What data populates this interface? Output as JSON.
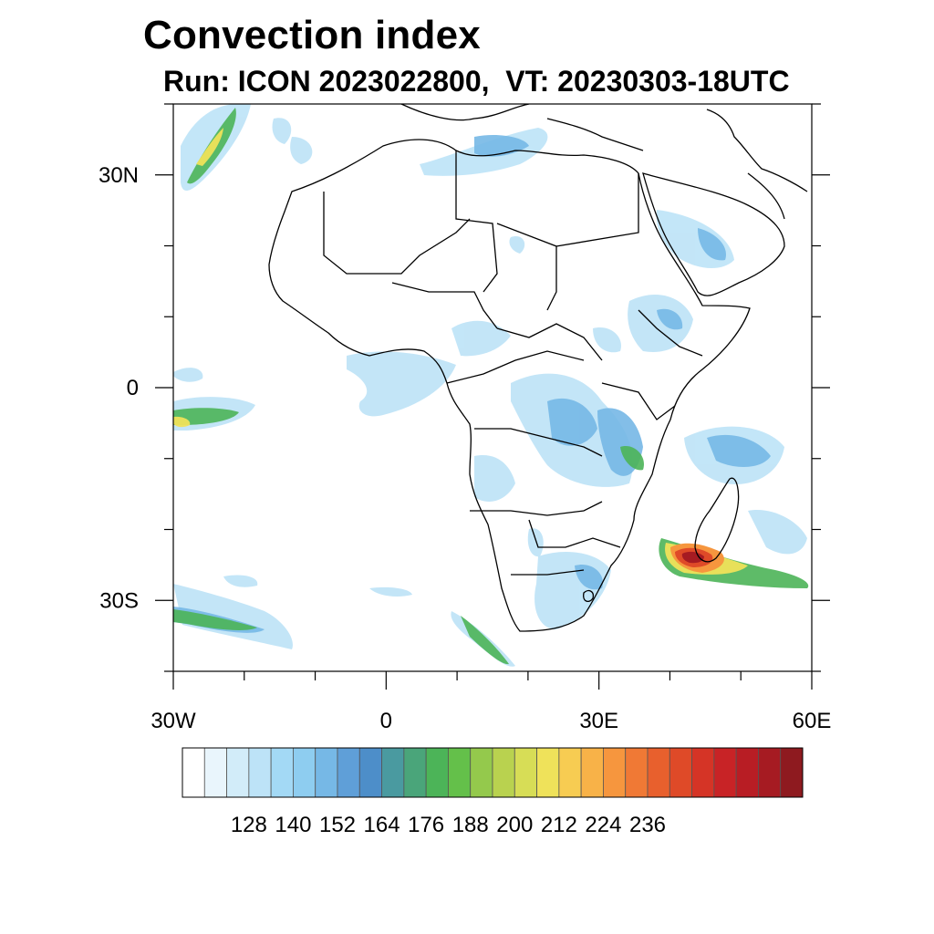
{
  "title": "Convection index",
  "subtitle": "Run: ICON 2023022800,  VT: 20230303-18UTC",
  "map": {
    "lon_range": [
      -30,
      60
    ],
    "lat_range": [
      -40,
      40
    ],
    "lat_labels": [
      {
        "value": 30,
        "text": "30N"
      },
      {
        "value": 0,
        "text": "0"
      },
      {
        "value": -30,
        "text": "30S"
      }
    ],
    "lon_labels": [
      {
        "value": -30,
        "text": "30W"
      },
      {
        "value": 0,
        "text": "0"
      },
      {
        "value": 30,
        "text": "30E"
      },
      {
        "value": 60,
        "text": "60E"
      }
    ],
    "lat_ticks": [
      40,
      30,
      20,
      10,
      0,
      -10,
      -20,
      -30,
      -40
    ],
    "lon_ticks": [
      -30,
      -20,
      -10,
      0,
      10,
      20,
      30,
      40,
      50,
      60
    ]
  },
  "colorbar": {
    "colors": [
      "#ffffff",
      "#e9f5fc",
      "#d2ecf9",
      "#bde3f7",
      "#a3d9f5",
      "#8ecdf0",
      "#76b8e6",
      "#5f9fd8",
      "#4d8ec9",
      "#4a9aa0",
      "#4aa57a",
      "#4cb458",
      "#64c04a",
      "#94c94c",
      "#b9d24f",
      "#d7dd56",
      "#efe25a",
      "#f7cc52",
      "#f8b248",
      "#f6963e",
      "#f07935",
      "#e8602d",
      "#df4a28",
      "#d53426",
      "#c82326",
      "#b81d24",
      "#a61b22",
      "#8e1a1f"
    ],
    "labels": [
      "128",
      "140",
      "152",
      "164",
      "176",
      "188",
      "200",
      "212",
      "224",
      "236"
    ]
  }
}
